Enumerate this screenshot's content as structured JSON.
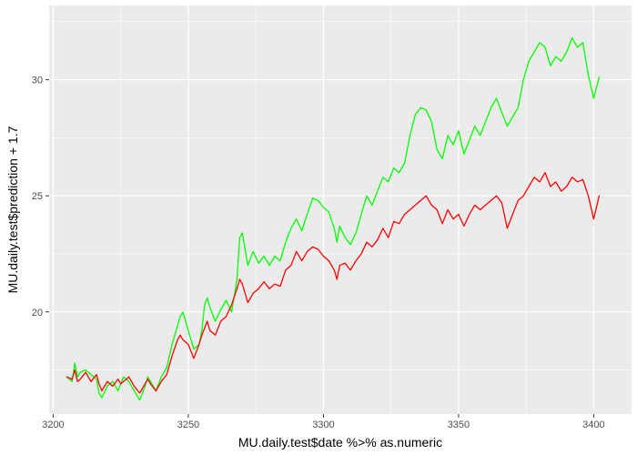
{
  "chart_data": {
    "type": "line",
    "title": "",
    "xlabel": "MU.daily.test$date %>% as.numeric",
    "ylabel": "MU.daily.test$prediction + 1.7",
    "xlim": [
      3198.5,
      3414
    ],
    "ylim": [
      15.6,
      33.2
    ],
    "x_ticks": [
      3200,
      3250,
      3300,
      3350,
      3400
    ],
    "x_tick_labels": [
      "3200",
      "3250",
      "3300",
      "3350",
      "3400"
    ],
    "y_ticks": [
      20,
      25,
      30
    ],
    "y_tick_labels": [
      "20",
      "25",
      "30"
    ],
    "grid": true,
    "legend": "none",
    "colors": {
      "panel": "#EBEBEB",
      "grid": "#FFFFFF",
      "green": "#00FF00",
      "red": "#FF0000"
    },
    "series": [
      {
        "color": "#00FF00",
        "x": [
          3205,
          3207,
          3208,
          3209,
          3210,
          3212,
          3214,
          3216,
          3217,
          3218,
          3220,
          3222,
          3224,
          3225,
          3226,
          3228,
          3230,
          3232,
          3234,
          3235,
          3236,
          3238,
          3240,
          3242,
          3244,
          3246,
          3247,
          3248,
          3250,
          3252,
          3254,
          3255,
          3256,
          3257,
          3258,
          3260,
          3262,
          3264,
          3266,
          3268,
          3269,
          3270,
          3272,
          3274,
          3276,
          3278,
          3280,
          3282,
          3284,
          3286,
          3288,
          3290,
          3292,
          3294,
          3296,
          3298,
          3300,
          3302,
          3304,
          3305,
          3306,
          3308,
          3310,
          3312,
          3314,
          3316,
          3318,
          3320,
          3322,
          3324,
          3326,
          3328,
          3330,
          3332,
          3334,
          3336,
          3338,
          3340,
          3342,
          3344,
          3346,
          3348,
          3350,
          3352,
          3354,
          3356,
          3358,
          3360,
          3362,
          3364,
          3366,
          3368,
          3370,
          3372,
          3374,
          3376,
          3378,
          3380,
          3382,
          3384,
          3386,
          3388,
          3390,
          3392,
          3394,
          3396,
          3398,
          3400,
          3402
        ],
        "values": [
          17.2,
          17.0,
          17.8,
          17.2,
          17.4,
          17.5,
          17.3,
          17.1,
          16.5,
          16.3,
          16.8,
          17.0,
          16.6,
          16.9,
          17.2,
          17.0,
          16.6,
          16.2,
          16.8,
          17.2,
          17.0,
          16.6,
          17.2,
          17.6,
          18.6,
          19.4,
          19.8,
          20.0,
          19.2,
          18.4,
          18.6,
          19.2,
          20.3,
          20.6,
          20.2,
          19.6,
          20.1,
          20.5,
          20.0,
          21.4,
          23.2,
          23.4,
          22.0,
          22.6,
          22.1,
          22.4,
          22.0,
          22.4,
          22.2,
          23.0,
          23.6,
          24.0,
          23.5,
          24.2,
          24.9,
          24.8,
          24.5,
          24.3,
          23.6,
          23.0,
          23.7,
          23.2,
          22.9,
          23.4,
          24.2,
          25.0,
          24.6,
          25.2,
          25.8,
          25.6,
          26.2,
          26.0,
          26.4,
          27.6,
          28.5,
          28.8,
          28.7,
          28.2,
          27.0,
          26.6,
          27.6,
          27.2,
          27.8,
          26.8,
          27.4,
          28.0,
          27.6,
          28.2,
          28.8,
          29.2,
          28.6,
          28.0,
          28.4,
          28.8,
          30.0,
          30.8,
          31.2,
          31.6,
          31.4,
          30.6,
          31.0,
          30.8,
          31.2,
          31.8,
          31.4,
          31.6,
          30.2,
          29.2,
          30.1
        ],
        "_ym": "raw-scale"
      },
      {
        "color": "#FF0000",
        "x": [
          3205,
          3207,
          3208,
          3209,
          3210,
          3212,
          3214,
          3216,
          3217,
          3218,
          3220,
          3222,
          3224,
          3225,
          3226,
          3228,
          3230,
          3232,
          3234,
          3235,
          3236,
          3238,
          3240,
          3242,
          3244,
          3246,
          3247,
          3248,
          3250,
          3252,
          3254,
          3255,
          3256,
          3257,
          3258,
          3260,
          3262,
          3264,
          3266,
          3268,
          3269,
          3270,
          3272,
          3274,
          3276,
          3278,
          3280,
          3282,
          3284,
          3286,
          3288,
          3290,
          3292,
          3294,
          3296,
          3298,
          3300,
          3302,
          3304,
          3305,
          3306,
          3308,
          3310,
          3312,
          3314,
          3316,
          3318,
          3320,
          3322,
          3324,
          3326,
          3328,
          3330,
          3332,
          3334,
          3336,
          3338,
          3340,
          3342,
          3344,
          3346,
          3348,
          3350,
          3352,
          3354,
          3356,
          3358,
          3360,
          3362,
          3364,
          3366,
          3368,
          3370,
          3372,
          3374,
          3376,
          3378,
          3380,
          3382,
          3384,
          3386,
          3388,
          3390,
          3392,
          3394,
          3396,
          3398,
          3400,
          3402
        ],
        "values": [
          17.2,
          17.1,
          17.5,
          17.0,
          17.1,
          17.4,
          17.0,
          17.3,
          16.9,
          16.6,
          17.0,
          16.8,
          17.1,
          16.9,
          17.0,
          17.2,
          16.8,
          16.5,
          16.9,
          17.1,
          16.9,
          16.6,
          17.0,
          17.3,
          18.1,
          18.8,
          19.0,
          18.8,
          18.6,
          18.0,
          18.6,
          19.0,
          19.3,
          19.6,
          19.2,
          19.0,
          19.6,
          19.8,
          20.3,
          21.0,
          21.4,
          21.2,
          20.4,
          20.8,
          21.0,
          21.3,
          21.0,
          21.2,
          21.1,
          21.8,
          22.0,
          22.6,
          22.2,
          22.6,
          22.8,
          22.7,
          22.4,
          22.2,
          21.8,
          21.4,
          22.0,
          22.1,
          21.8,
          22.2,
          22.5,
          23.0,
          22.8,
          23.1,
          23.6,
          23.2,
          23.9,
          23.8,
          24.2,
          24.4,
          24.6,
          24.8,
          25.0,
          24.6,
          24.4,
          23.8,
          24.4,
          24.0,
          24.2,
          23.7,
          24.2,
          24.6,
          24.4,
          24.6,
          24.8,
          25.0,
          24.7,
          23.6,
          24.2,
          24.8,
          25.0,
          25.4,
          25.8,
          25.6,
          26.0,
          25.4,
          25.6,
          25.2,
          25.4,
          25.8,
          25.6,
          25.7,
          25.0,
          24.0,
          25.0
        ],
        "_ym": "raw-scale"
      }
    ]
  }
}
